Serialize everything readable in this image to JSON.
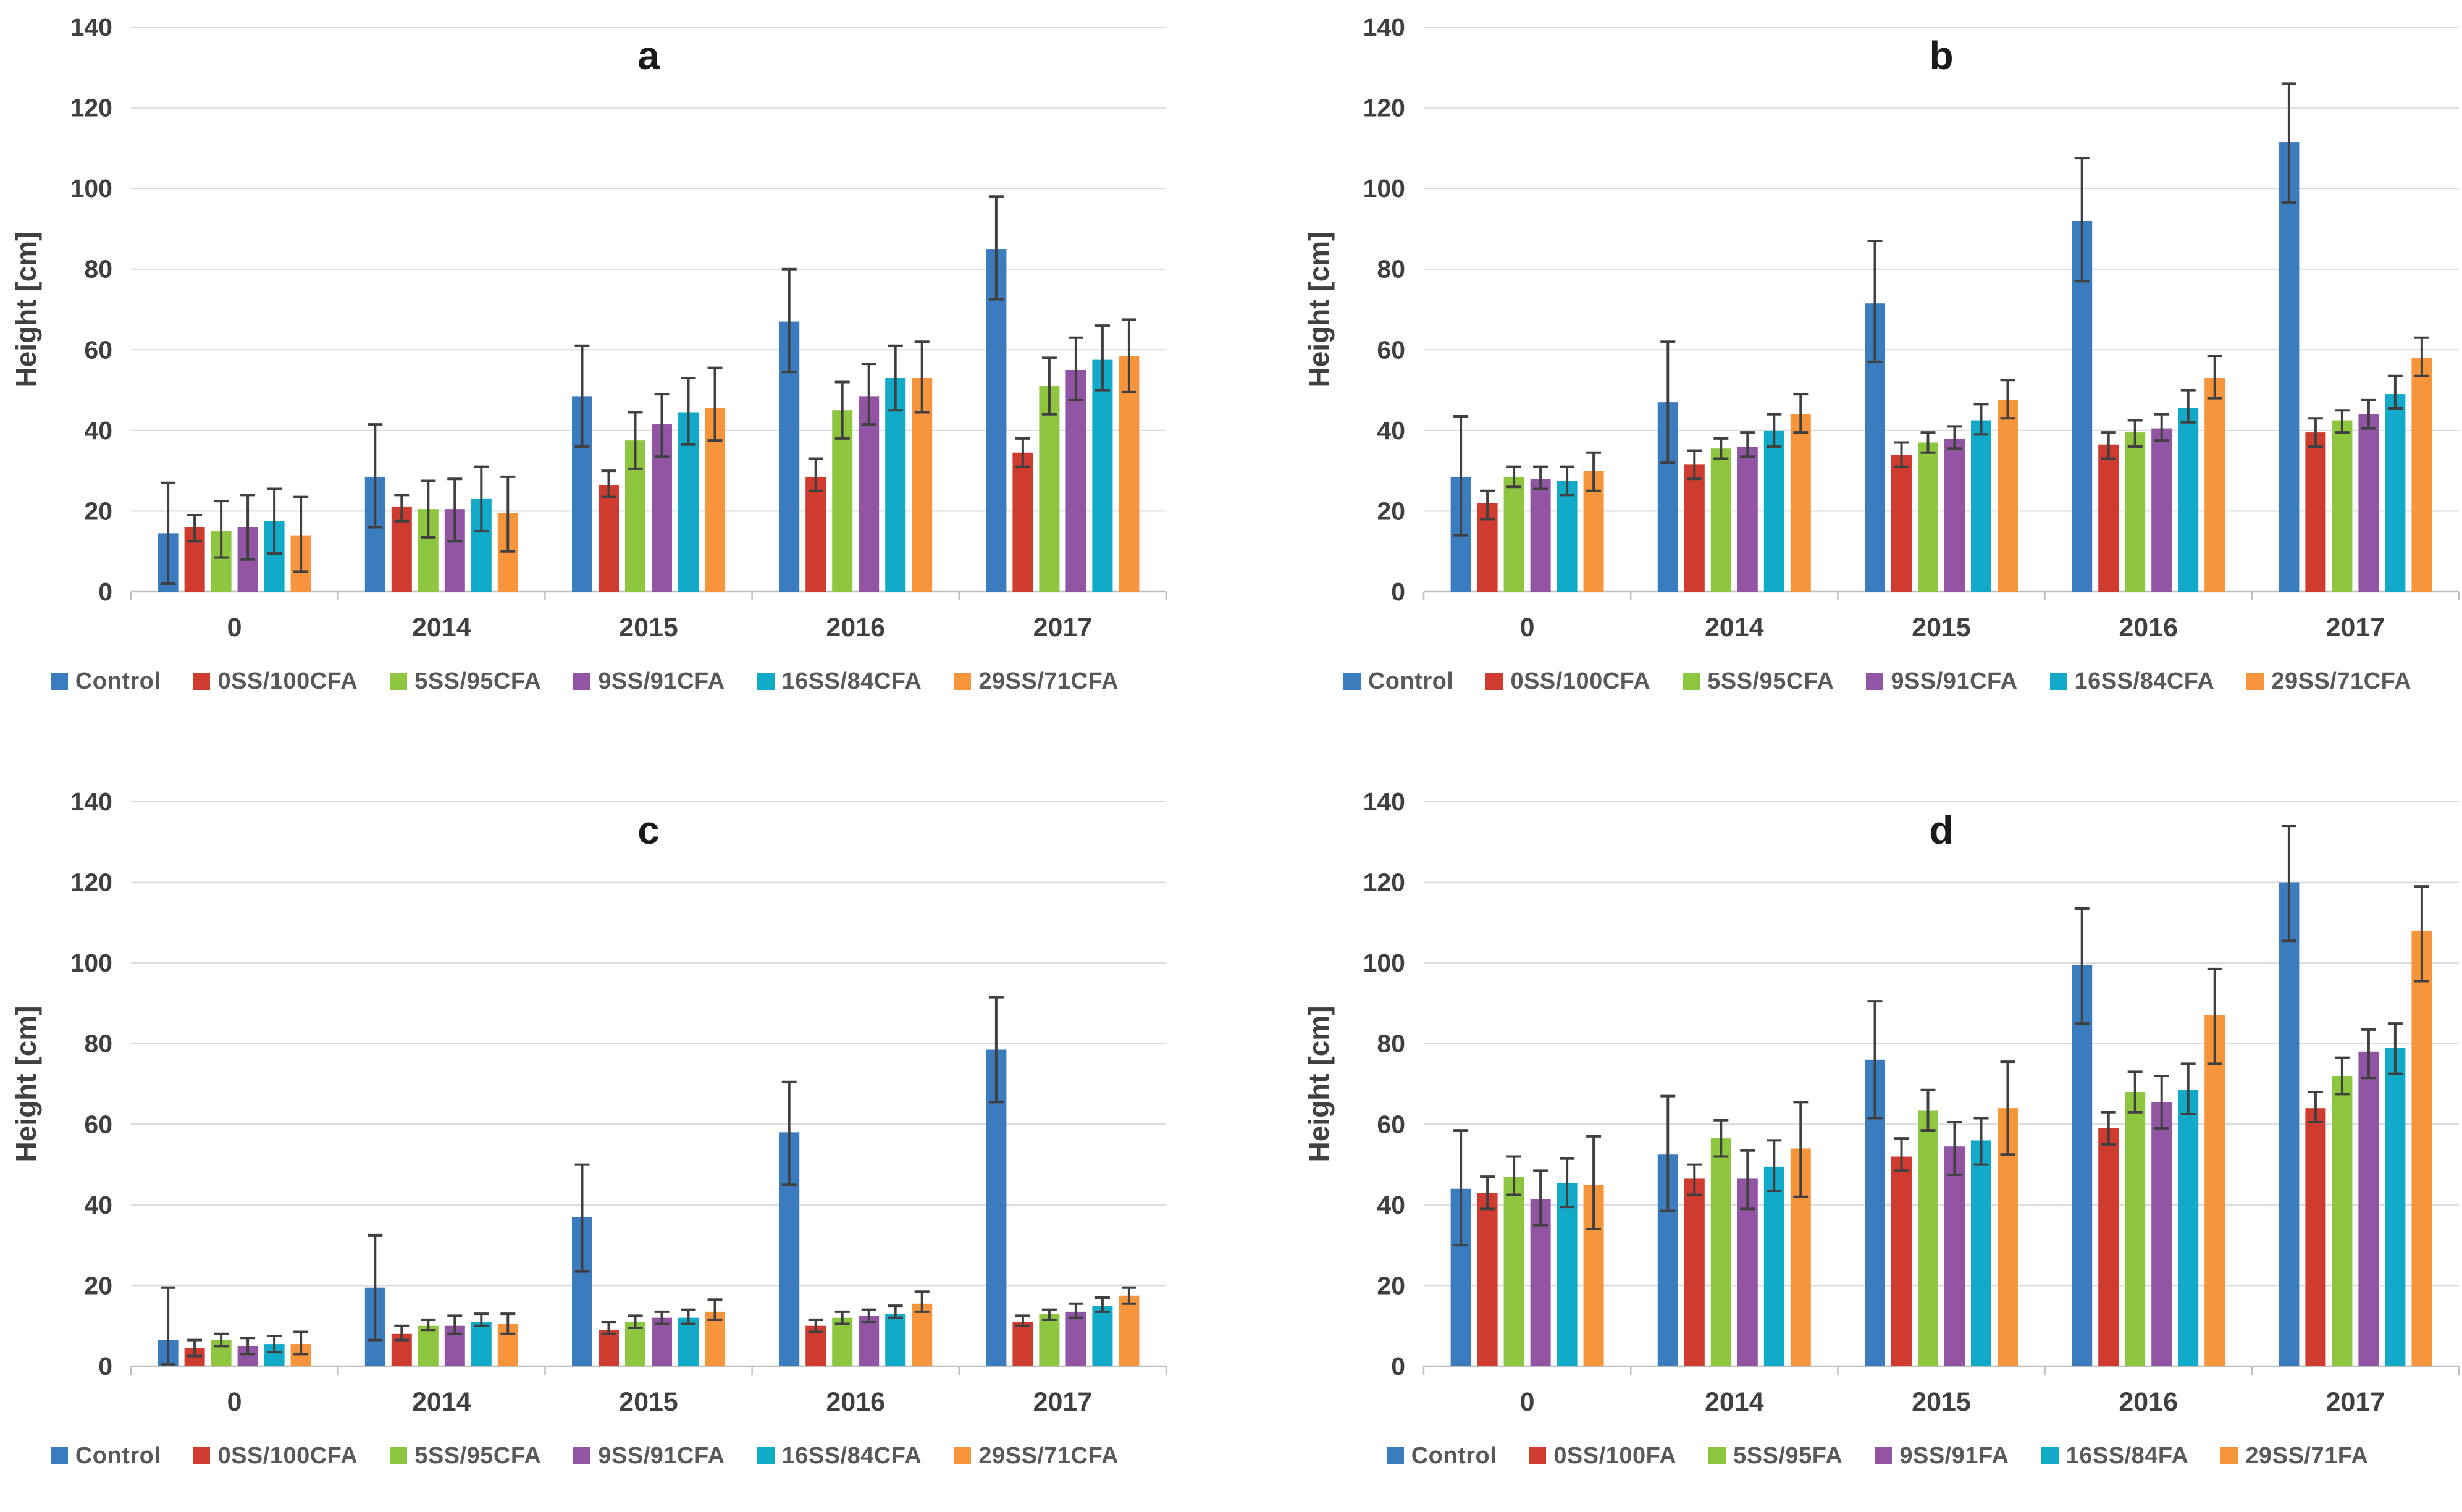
{
  "figure": {
    "background": "#FFFFFF"
  },
  "palette": {
    "grid": "#D9D9D9",
    "axis_line": "#BFBFBF",
    "tick_text": "#404040",
    "title_text": "#1A1A1A",
    "legend_text": "#595959",
    "error_bar": "#404040"
  },
  "chart_data": [
    {
      "type": "bar",
      "title": "a",
      "ylabel": "Height [cm]",
      "xlabel": "",
      "ylim": [
        0,
        140
      ],
      "ytick_step": 20,
      "grid": true,
      "legend_position": "bottom",
      "categories": [
        "0",
        "2014",
        "2015",
        "2016",
        "2017"
      ],
      "series": [
        {
          "name": "Control",
          "color": "#3B7CBF",
          "values": [
            14.5,
            28.5,
            48.5,
            67,
            85
          ],
          "err_lo": [
            2,
            16,
            36,
            54.5,
            72.5
          ],
          "err_hi": [
            27,
            41.5,
            61,
            80,
            98
          ]
        },
        {
          "name": "0SS/100CFA",
          "color": "#D03B2F",
          "values": [
            16,
            21,
            26.5,
            28.5,
            34.5
          ],
          "err_lo": [
            12.5,
            17.5,
            23.5,
            25,
            31
          ],
          "err_hi": [
            19,
            24,
            30,
            33,
            38
          ]
        },
        {
          "name": "5SS/95CFA",
          "color": "#8FC640",
          "values": [
            15,
            20.5,
            37.5,
            45,
            51
          ],
          "err_lo": [
            8.5,
            13.5,
            30.5,
            38,
            44
          ],
          "err_hi": [
            22.5,
            27.5,
            44.5,
            52,
            58
          ]
        },
        {
          "name": "9SS/91CFA",
          "color": "#9155A4",
          "values": [
            16,
            20.5,
            41.5,
            48.5,
            55
          ],
          "err_lo": [
            8,
            12.5,
            33.5,
            41.5,
            47.5
          ],
          "err_hi": [
            24,
            28,
            49,
            56.5,
            63
          ]
        },
        {
          "name": "16SS/84CFA",
          "color": "#12AAC9",
          "values": [
            17.5,
            23,
            44.5,
            53,
            57.5
          ],
          "err_lo": [
            9.5,
            15,
            36.5,
            45,
            50
          ],
          "err_hi": [
            25.5,
            31,
            53,
            61,
            66
          ]
        },
        {
          "name": "29SS/71CFA",
          "color": "#F7953D",
          "values": [
            14,
            19.5,
            45.5,
            53,
            58.5
          ],
          "err_lo": [
            5,
            10,
            37.5,
            44.5,
            49.5
          ],
          "err_hi": [
            23.5,
            28.5,
            55.5,
            62,
            67.5
          ]
        }
      ]
    },
    {
      "type": "bar",
      "title": "b",
      "ylabel": "Height [cm]",
      "xlabel": "",
      "ylim": [
        0,
        140
      ],
      "ytick_step": 20,
      "grid": true,
      "legend_position": "bottom",
      "categories": [
        "0",
        "2014",
        "2015",
        "2016",
        "2017"
      ],
      "series": [
        {
          "name": "Control",
          "color": "#3B7CBF",
          "values": [
            28.5,
            47,
            71.5,
            92,
            111.5
          ],
          "err_lo": [
            14,
            32,
            57,
            77,
            96.5
          ],
          "err_hi": [
            43.5,
            62,
            87,
            107.5,
            126
          ]
        },
        {
          "name": "0SS/100CFA",
          "color": "#D03B2F",
          "values": [
            22,
            31.5,
            34,
            36.5,
            39.5
          ],
          "err_lo": [
            18,
            28,
            31,
            33,
            36
          ],
          "err_hi": [
            25,
            35,
            37,
            39.5,
            43
          ]
        },
        {
          "name": "5SS/95CFA",
          "color": "#8FC640",
          "values": [
            28.5,
            35.5,
            37,
            39.5,
            42.5
          ],
          "err_lo": [
            26,
            33,
            34.5,
            36,
            39.5
          ],
          "err_hi": [
            31,
            38,
            39.5,
            42.5,
            45
          ]
        },
        {
          "name": "9SS/91CFA",
          "color": "#9155A4",
          "values": [
            28,
            36,
            38,
            40.5,
            44
          ],
          "err_lo": [
            25.5,
            33.5,
            35.5,
            37.5,
            40.5
          ],
          "err_hi": [
            31,
            39.5,
            41,
            44,
            47.5
          ]
        },
        {
          "name": "16SS/84CFA",
          "color": "#12AAC9",
          "values": [
            27.5,
            40,
            42.5,
            45.5,
            49
          ],
          "err_lo": [
            24,
            36,
            39,
            42,
            45.5
          ],
          "err_hi": [
            31,
            44,
            46.5,
            50,
            53.5
          ]
        },
        {
          "name": "29SS/71CFA",
          "color": "#F7953D",
          "values": [
            30,
            44,
            47.5,
            53,
            58
          ],
          "err_lo": [
            25,
            39.5,
            43,
            48,
            53.5
          ],
          "err_hi": [
            34.5,
            49,
            52.5,
            58.5,
            63
          ]
        }
      ]
    },
    {
      "type": "bar",
      "title": "c",
      "ylabel": "Height [cm]",
      "xlabel": "",
      "ylim": [
        0,
        140
      ],
      "ytick_step": 20,
      "grid": true,
      "legend_position": "bottom",
      "categories": [
        "0",
        "2014",
        "2015",
        "2016",
        "2017"
      ],
      "series": [
        {
          "name": "Control",
          "color": "#3B7CBF",
          "values": [
            6.5,
            19.5,
            37,
            58,
            78.5
          ],
          "err_lo": [
            0.5,
            6.5,
            23.5,
            45,
            65.5
          ],
          "err_hi": [
            19.5,
            32.5,
            50,
            70.5,
            91.5
          ]
        },
        {
          "name": "0SS/100CFA",
          "color": "#D03B2F",
          "values": [
            4.5,
            8,
            9,
            10,
            11
          ],
          "err_lo": [
            2.5,
            6.5,
            8,
            8.5,
            10
          ],
          "err_hi": [
            6.5,
            10,
            11,
            11.5,
            12.5
          ]
        },
        {
          "name": "5SS/95CFA",
          "color": "#8FC640",
          "values": [
            6.5,
            10,
            11,
            12,
            13
          ],
          "err_lo": [
            5,
            9,
            9.5,
            10.5,
            11.5
          ],
          "err_hi": [
            8,
            11.5,
            12.5,
            13.5,
            14
          ]
        },
        {
          "name": "9SS/91CFA",
          "color": "#9155A4",
          "values": [
            5,
            10,
            12,
            12.5,
            13.5
          ],
          "err_lo": [
            3,
            8,
            10.5,
            11,
            12
          ],
          "err_hi": [
            7,
            12.5,
            13.5,
            14,
            15.5
          ]
        },
        {
          "name": "16SS/84CFA",
          "color": "#12AAC9",
          "values": [
            5.5,
            11,
            12,
            13,
            15
          ],
          "err_lo": [
            3.5,
            10,
            10.5,
            12,
            13.5
          ],
          "err_hi": [
            7.5,
            13,
            14,
            15,
            17
          ]
        },
        {
          "name": "29SS/71CFA",
          "color": "#F7953D",
          "values": [
            5.5,
            10.5,
            13.5,
            15.5,
            17.5
          ],
          "err_lo": [
            3,
            8,
            11.5,
            13.5,
            15.5
          ],
          "err_hi": [
            8.5,
            13,
            16.5,
            18.5,
            19.5
          ]
        }
      ]
    },
    {
      "type": "bar",
      "title": "d",
      "ylabel": "Height [cm]",
      "xlabel": "",
      "ylim": [
        0,
        140
      ],
      "ytick_step": 20,
      "grid": true,
      "legend_position": "bottom",
      "categories": [
        "0",
        "2014",
        "2015",
        "2016",
        "2017"
      ],
      "series": [
        {
          "name": "Control",
          "color": "#3B7CBF",
          "values": [
            44,
            52.5,
            76,
            99.5,
            120
          ],
          "err_lo": [
            30,
            38.5,
            61.5,
            85,
            105.5
          ],
          "err_hi": [
            58.5,
            67,
            90.5,
            113.5,
            134
          ]
        },
        {
          "name": "0SS/100FA",
          "color": "#D03B2F",
          "values": [
            43,
            46.5,
            52,
            59,
            64
          ],
          "err_lo": [
            39,
            42.5,
            48.5,
            55,
            60.5
          ],
          "err_hi": [
            47,
            50,
            56.5,
            63,
            68
          ]
        },
        {
          "name": "5SS/95FA",
          "color": "#8FC640",
          "values": [
            47,
            56.5,
            63.5,
            68,
            72
          ],
          "err_lo": [
            42.5,
            52,
            58.5,
            63,
            67.5
          ],
          "err_hi": [
            52,
            61,
            68.5,
            73,
            76.5
          ]
        },
        {
          "name": "9SS/91FA",
          "color": "#9155A4",
          "values": [
            41.5,
            46.5,
            54.5,
            65.5,
            78
          ],
          "err_lo": [
            35,
            39,
            47.5,
            59,
            71.5
          ],
          "err_hi": [
            48.5,
            53.5,
            60.5,
            72,
            83.5
          ]
        },
        {
          "name": "16SS/84FA",
          "color": "#12AAC9",
          "values": [
            45.5,
            49.5,
            56,
            68.5,
            79
          ],
          "err_lo": [
            39.5,
            43.5,
            50,
            62.5,
            72.5
          ],
          "err_hi": [
            51.5,
            56,
            61.5,
            75,
            85
          ]
        },
        {
          "name": "29SS/71FA",
          "color": "#F7953D",
          "values": [
            45,
            54,
            64,
            87,
            108
          ],
          "err_lo": [
            34,
            42,
            52.5,
            75,
            95.5
          ],
          "err_hi": [
            57,
            65.5,
            75.5,
            98.5,
            119
          ]
        }
      ]
    }
  ]
}
